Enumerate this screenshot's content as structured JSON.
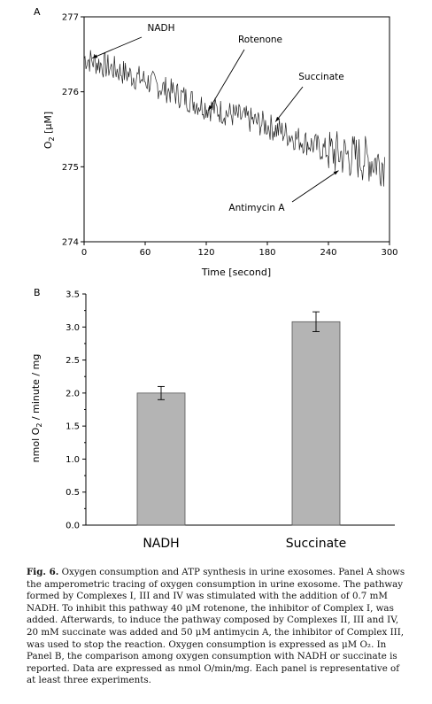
{
  "chart_data": [
    {
      "panel": "A",
      "type": "line",
      "xlabel": "Time [second]",
      "ylabel_main": "O",
      "ylabel_sub": "2",
      "ylabel_unit": " [μM]",
      "xlim": [
        0,
        300
      ],
      "ylim": [
        274,
        277
      ],
      "xticks": [
        "0",
        "60",
        "120",
        "180",
        "240",
        "300"
      ],
      "yticks": [
        "274",
        "275",
        "276",
        "277"
      ],
      "grid": false,
      "annotations": [
        {
          "label": "NADH",
          "x": 8,
          "y": 276.45
        },
        {
          "label": "Rotenone",
          "x": 122,
          "y": 275.75
        },
        {
          "label": "Succinate",
          "x": 188,
          "y": 275.6
        },
        {
          "label": "Antimycin A",
          "x": 250,
          "y": 274.95
        }
      ],
      "trend": [
        {
          "x": 0,
          "y": 276.45
        },
        {
          "x": 60,
          "y": 276.15
        },
        {
          "x": 120,
          "y": 275.8
        },
        {
          "x": 180,
          "y": 275.55
        },
        {
          "x": 240,
          "y": 275.2
        },
        {
          "x": 296,
          "y": 275.05
        }
      ]
    },
    {
      "panel": "B",
      "type": "bar",
      "categories": [
        "NADH",
        "Succinate"
      ],
      "values": [
        2.0,
        3.08
      ],
      "errors": [
        0.1,
        0.15
      ],
      "ylabel_main": "nmol O",
      "ylabel_sub": "2",
      "ylabel_unit": " / minute / mg",
      "ylim": [
        0,
        3.5
      ],
      "yticks": [
        "0.0",
        "0.5",
        "1.0",
        "1.5",
        "2.0",
        "2.5",
        "3.0",
        "3.5"
      ],
      "bar_color": "#b4b4b4",
      "grid": false
    }
  ],
  "panel_labels": [
    "A",
    "B"
  ],
  "caption": {
    "lead": "Fig. 6.",
    "text": " Oxygen consumption and ATP synthesis in urine exosomes. Panel A shows the amperometric tracing of oxygen consumption in urine exosome. The pathway formed by Complexes I, III and IV was stimulated with the addition of 0.7 mM NADH. To inhibit this pathway 40 μM rotenone, the inhibitor of Complex I, was added. Afterwards, to induce the pathway composed by Complexes II, III and IV, 20 mM succinate was added and 50 μM antimycin A, the inhibitor of Complex III, was used to stop the reaction. Oxygen consumption is expressed as μM O₂. In Panel B, the comparison among oxygen consumption with NADH or succinate is reported. Data are expressed as nmol O/min/mg. Each panel is representative of at least three experiments."
  }
}
